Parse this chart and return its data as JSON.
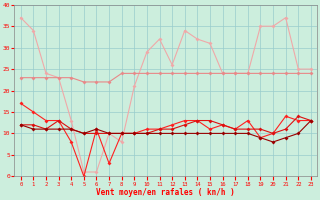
{
  "x": [
    0,
    1,
    2,
    3,
    4,
    5,
    6,
    7,
    8,
    9,
    10,
    11,
    12,
    13,
    14,
    15,
    16,
    17,
    18,
    19,
    20,
    21,
    22,
    23
  ],
  "line1_gust_high": [
    37,
    34,
    24,
    23,
    13,
    1,
    1,
    10,
    8,
    21,
    29,
    32,
    26,
    34,
    32,
    31,
    24,
    24,
    24,
    35,
    35,
    37,
    25,
    25
  ],
  "line2_avg_high": [
    23,
    23,
    23,
    23,
    23,
    22,
    22,
    22,
    24,
    24,
    24,
    24,
    24,
    24,
    24,
    24,
    24,
    24,
    24,
    24,
    24,
    24,
    24,
    24
  ],
  "line3_red_volatile": [
    17,
    15,
    13,
    13,
    8,
    0,
    11,
    3,
    10,
    10,
    11,
    11,
    12,
    13,
    13,
    11,
    12,
    11,
    13,
    9,
    10,
    14,
    13,
    13
  ],
  "line4_red_mid": [
    12,
    12,
    11,
    13,
    11,
    10,
    10,
    10,
    10,
    10,
    10,
    11,
    11,
    12,
    13,
    13,
    12,
    11,
    11,
    11,
    10,
    11,
    14,
    13
  ],
  "line5_dark_trend": [
    12,
    11,
    11,
    11,
    11,
    10,
    11,
    10,
    10,
    10,
    10,
    10,
    10,
    10,
    10,
    10,
    10,
    10,
    10,
    9,
    8,
    9,
    10,
    13
  ],
  "color_pink_light": "#f0a8a8",
  "color_pink_med": "#e88888",
  "color_red_bright": "#ff2020",
  "color_red_mid": "#dd1010",
  "color_dark_red": "#990000",
  "bg_color": "#cceedd",
  "grid_color": "#99cccc",
  "xlabel": "Vent moyen/en rafales ( kn/h )",
  "ylim": [
    0,
    40
  ],
  "xlim": [
    -0.5,
    23.5
  ],
  "yticks": [
    0,
    5,
    10,
    15,
    20,
    25,
    30,
    35,
    40
  ]
}
